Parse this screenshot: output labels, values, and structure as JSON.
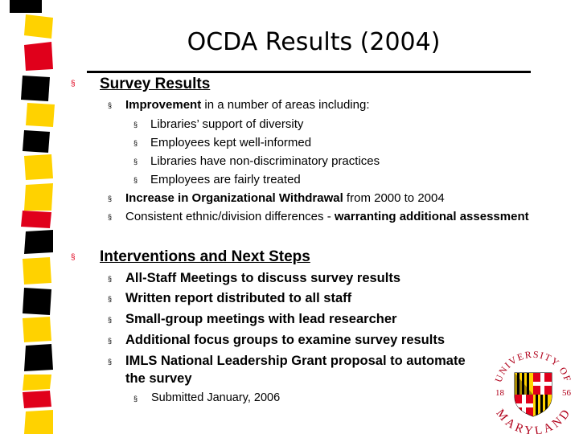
{
  "slide": {
    "title": "OCDA Results (2004)",
    "bullet_marker": "§"
  },
  "survey": {
    "heading": "Survey Results",
    "improvement_bold": "Improvement",
    "improvement_rest": " in a number of areas including:",
    "sub_items": [
      "Libraries’ support of diversity",
      "Employees kept well-informed",
      "Libraries have non-discriminatory practices",
      "Employees are fairly treated"
    ],
    "withdrawal_bold": "Increase in Organizational Withdrawal",
    "withdrawal_rest": " from 2000 to 2004",
    "ethnic_rest": "Consistent ethnic/division differences - ",
    "ethnic_bold": "warranting additional assessment"
  },
  "interventions": {
    "heading": "Interventions and Next Steps",
    "items": [
      "All-Staff Meetings to discuss survey results",
      "Written report distributed to all staff",
      "Small-group meetings with lead researcher",
      "Additional focus groups to examine survey results",
      "IMLS National Leadership Grant proposal to automate",
      "the survey"
    ],
    "sub_item": "Submitted January, 2006"
  },
  "seal": {
    "top_text": "UNIVERSITY OF",
    "bottom_text": "MARYLAND",
    "year_left": "18",
    "year_right": "56"
  },
  "colors": {
    "stripe_yellow": "#ffd200",
    "stripe_red": "#e0001b",
    "stripe_black": "#000000",
    "bullet_red": "#e0001b"
  }
}
